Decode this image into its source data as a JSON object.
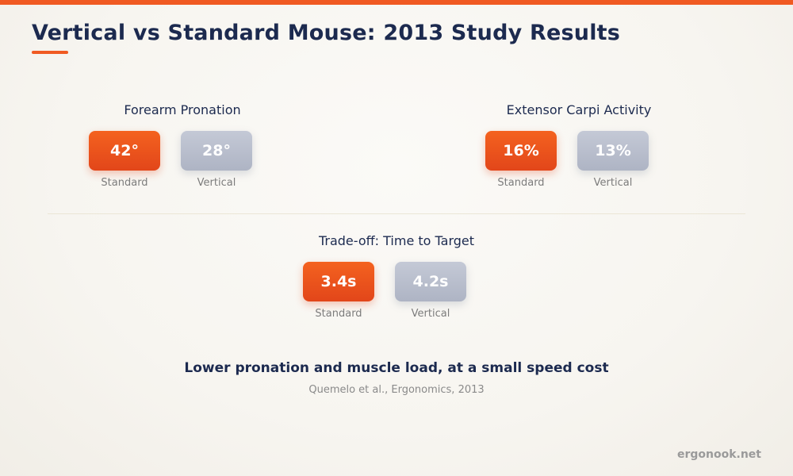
{
  "title": "Vertical vs Standard Mouse: 2013 Study Results",
  "chart_data": [
    {
      "type": "table",
      "title": "Forearm Pronation",
      "categories": [
        "Standard",
        "Vertical"
      ],
      "values": [
        42,
        28
      ],
      "display": [
        "42°",
        "28°"
      ],
      "unit": "°"
    },
    {
      "type": "table",
      "title": "Extensor Carpi Activity",
      "categories": [
        "Standard",
        "Vertical"
      ],
      "values": [
        16,
        13
      ],
      "display": [
        "16%",
        "13%"
      ],
      "unit": "%"
    },
    {
      "type": "table",
      "title": "Trade-off: Time to Target",
      "categories": [
        "Standard",
        "Vertical"
      ],
      "values": [
        3.4,
        4.2
      ],
      "display": [
        "3.4s",
        "4.2s"
      ],
      "unit": "s"
    }
  ],
  "takeaway": "Lower pronation and muscle load, at a small speed cost",
  "source": "Quemelo et al., Ergonomics, 2013",
  "brand": "ergonook.net",
  "colors": {
    "accent": "#f05a22",
    "standard": "#e94e1c",
    "vertical": "#b8bdcb",
    "title": "#1c2a4f"
  }
}
